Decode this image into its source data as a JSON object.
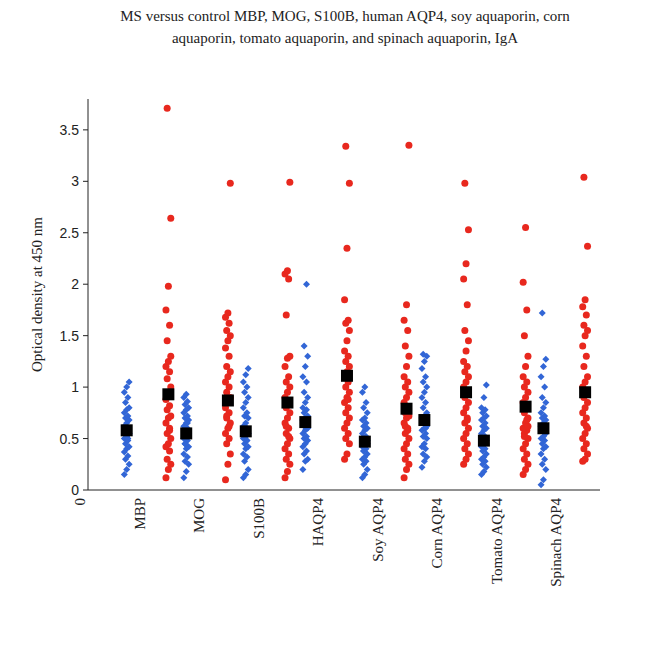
{
  "chart_data": {
    "type": "scatter",
    "title": "MS versus control MBP, MOG, S100B, human AQP4, soy aquaporin, corn aquaporin, tomato aquaporin, and spinach aquaporin, IgA",
    "ylabel": "Optical density at 450 nm",
    "x": [
      1,
      2,
      3,
      4,
      5,
      6,
      7,
      8
    ],
    "xlim": [
      0,
      8.6
    ],
    "xticks": [
      {
        "value": 0,
        "label": "0"
      },
      {
        "value": 1,
        "label": "MBP"
      },
      {
        "value": 2,
        "label": "MOG"
      },
      {
        "value": 3,
        "label": "S100B"
      },
      {
        "value": 4,
        "label": "HAQP4"
      },
      {
        "value": 5,
        "label": "Soy AQP4"
      },
      {
        "value": 6,
        "label": "Corn AQP4"
      },
      {
        "value": 7,
        "label": "Tomato AQP4"
      },
      {
        "value": 8,
        "label": "Spinach AQP4"
      }
    ],
    "ylim": [
      0,
      3.8
    ],
    "yticks": [
      0,
      0.5,
      1,
      1.5,
      2,
      2.5,
      3,
      3.5
    ],
    "series": [
      {
        "color": "#3266d6",
        "marker": "diamond",
        "values": [
          [
            0.15,
            0.2,
            0.25,
            0.3,
            0.33,
            0.37,
            0.4,
            0.42,
            0.45,
            0.48,
            0.5,
            0.52,
            0.55,
            0.57,
            0.6,
            0.62,
            0.65,
            0.68,
            0.7,
            0.72,
            0.75,
            0.78,
            0.8,
            0.85,
            0.9,
            0.95,
            1.0,
            1.05,
            0.6,
            0.5
          ],
          [
            0.12,
            0.18,
            0.25,
            0.28,
            0.32,
            0.35,
            0.4,
            0.42,
            0.45,
            0.48,
            0.5,
            0.52,
            0.55,
            0.58,
            0.6,
            0.62,
            0.65,
            0.68,
            0.7,
            0.72,
            0.75,
            0.78,
            0.8,
            0.83,
            0.86,
            0.9,
            0.93,
            0.55,
            0.45,
            0.65
          ],
          [
            0.12,
            0.15,
            0.2,
            0.28,
            0.32,
            0.35,
            0.4,
            0.42,
            0.45,
            0.48,
            0.5,
            0.52,
            0.55,
            0.58,
            0.6,
            0.62,
            0.65,
            0.7,
            0.72,
            0.75,
            0.8,
            0.85,
            0.9,
            0.95,
            1.0,
            1.05,
            1.12,
            1.18,
            0.55,
            0.48
          ],
          [
            0.2,
            0.28,
            0.3,
            0.35,
            0.38,
            0.42,
            0.45,
            0.48,
            0.5,
            0.52,
            0.55,
            0.58,
            0.6,
            0.62,
            0.65,
            0.68,
            0.7,
            0.72,
            0.75,
            0.78,
            0.8,
            0.85,
            0.9,
            0.95,
            1.05,
            1.1,
            1.2,
            1.3,
            1.4,
            2.0
          ],
          [
            0.12,
            0.15,
            0.2,
            0.25,
            0.28,
            0.3,
            0.32,
            0.35,
            0.38,
            0.4,
            0.42,
            0.45,
            0.48,
            0.5,
            0.52,
            0.55,
            0.58,
            0.6,
            0.62,
            0.65,
            0.68,
            0.7,
            0.75,
            0.8,
            0.85,
            0.95,
            1.0,
            0.45,
            0.38,
            0.5
          ],
          [
            0.22,
            0.28,
            0.32,
            0.35,
            0.4,
            0.42,
            0.45,
            0.5,
            0.52,
            0.55,
            0.58,
            0.6,
            0.62,
            0.65,
            0.68,
            0.7,
            0.72,
            0.75,
            0.8,
            0.85,
            0.9,
            0.95,
            1.0,
            1.05,
            1.1,
            1.18,
            1.25,
            1.3,
            1.32,
            0.6
          ],
          [
            0.15,
            0.18,
            0.22,
            0.25,
            0.28,
            0.3,
            0.32,
            0.35,
            0.38,
            0.4,
            0.42,
            0.45,
            0.48,
            0.5,
            0.52,
            0.55,
            0.58,
            0.6,
            0.62,
            0.65,
            0.68,
            0.7,
            0.72,
            0.75,
            0.78,
            0.8,
            0.9,
            1.02,
            0.42,
            0.5
          ],
          [
            0.05,
            0.1,
            0.2,
            0.25,
            0.3,
            0.35,
            0.4,
            0.42,
            0.45,
            0.48,
            0.5,
            0.52,
            0.55,
            0.58,
            0.6,
            0.62,
            0.65,
            0.68,
            0.7,
            0.72,
            0.75,
            0.8,
            0.85,
            0.9,
            1.0,
            1.1,
            1.2,
            1.27,
            1.72,
            0.55
          ]
        ]
      },
      {
        "color": "#e8281e",
        "marker": "circle",
        "values": [
          [
            0.12,
            0.2,
            0.25,
            0.3,
            0.38,
            0.42,
            0.45,
            0.5,
            0.55,
            0.6,
            0.65,
            0.7,
            0.72,
            0.78,
            0.82,
            0.88,
            0.95,
            1.0,
            1.08,
            1.15,
            1.2,
            1.25,
            1.3,
            1.45,
            1.6,
            1.75,
            1.98,
            2.64,
            3.71,
            0.58
          ],
          [
            0.1,
            0.25,
            0.35,
            0.45,
            0.5,
            0.55,
            0.6,
            0.65,
            0.7,
            0.75,
            0.8,
            0.85,
            0.9,
            0.95,
            1.0,
            1.05,
            1.1,
            1.15,
            1.2,
            1.3,
            1.38,
            1.45,
            1.5,
            1.55,
            1.62,
            1.68,
            1.72,
            2.98,
            0.72,
            0.62
          ],
          [
            0.12,
            0.18,
            0.25,
            0.3,
            0.35,
            0.4,
            0.45,
            0.5,
            0.55,
            0.6,
            0.65,
            0.7,
            0.75,
            0.8,
            0.85,
            0.9,
            0.95,
            1.0,
            1.05,
            1.1,
            1.2,
            1.28,
            1.3,
            1.7,
            2.05,
            2.1,
            2.13,
            2.99,
            0.62,
            0.52
          ],
          [
            0.3,
            0.35,
            0.45,
            0.5,
            0.55,
            0.6,
            0.65,
            0.7,
            0.75,
            0.8,
            0.85,
            0.9,
            0.95,
            1.0,
            1.05,
            1.1,
            1.15,
            1.2,
            1.25,
            1.3,
            1.35,
            1.45,
            1.55,
            1.62,
            1.65,
            1.85,
            2.35,
            2.98,
            3.34,
            0.88
          ],
          [
            0.12,
            0.2,
            0.25,
            0.3,
            0.35,
            0.4,
            0.45,
            0.5,
            0.55,
            0.6,
            0.65,
            0.7,
            0.72,
            0.75,
            0.8,
            0.85,
            0.9,
            0.95,
            1.0,
            1.05,
            1.1,
            1.2,
            1.3,
            1.4,
            1.55,
            1.65,
            1.8,
            3.35,
            0.62,
            0.58
          ],
          [
            0.25,
            0.3,
            0.35,
            0.4,
            0.45,
            0.5,
            0.55,
            0.6,
            0.65,
            0.7,
            0.75,
            0.8,
            0.85,
            0.9,
            0.95,
            1.0,
            1.05,
            1.1,
            1.15,
            1.2,
            1.25,
            1.35,
            1.45,
            1.55,
            1.8,
            2.05,
            2.2,
            2.53,
            2.98,
            0.68
          ],
          [
            0.15,
            0.2,
            0.25,
            0.3,
            0.35,
            0.4,
            0.45,
            0.5,
            0.55,
            0.58,
            0.6,
            0.65,
            0.7,
            0.75,
            0.8,
            0.85,
            0.9,
            0.95,
            1.0,
            1.05,
            1.1,
            1.2,
            1.3,
            1.5,
            1.75,
            2.02,
            2.55,
            0.62,
            0.52,
            0.68
          ],
          [
            0.28,
            0.3,
            0.35,
            0.4,
            0.45,
            0.5,
            0.55,
            0.6,
            0.65,
            0.7,
            0.75,
            0.8,
            0.85,
            0.9,
            0.95,
            1.0,
            1.05,
            1.1,
            1.2,
            1.3,
            1.4,
            1.5,
            1.55,
            1.6,
            1.7,
            1.78,
            1.85,
            2.37,
            3.04,
            0.62
          ]
        ]
      },
      {
        "color": "#000000",
        "marker": "square",
        "values": [
          0.58,
          0.55,
          0.57,
          0.66,
          0.47,
          0.68,
          0.48,
          0.6
        ]
      },
      {
        "color": "#000000",
        "marker": "square",
        "values": [
          0.93,
          0.87,
          0.85,
          1.11,
          0.79,
          0.95,
          0.81,
          0.95
        ]
      }
    ]
  }
}
